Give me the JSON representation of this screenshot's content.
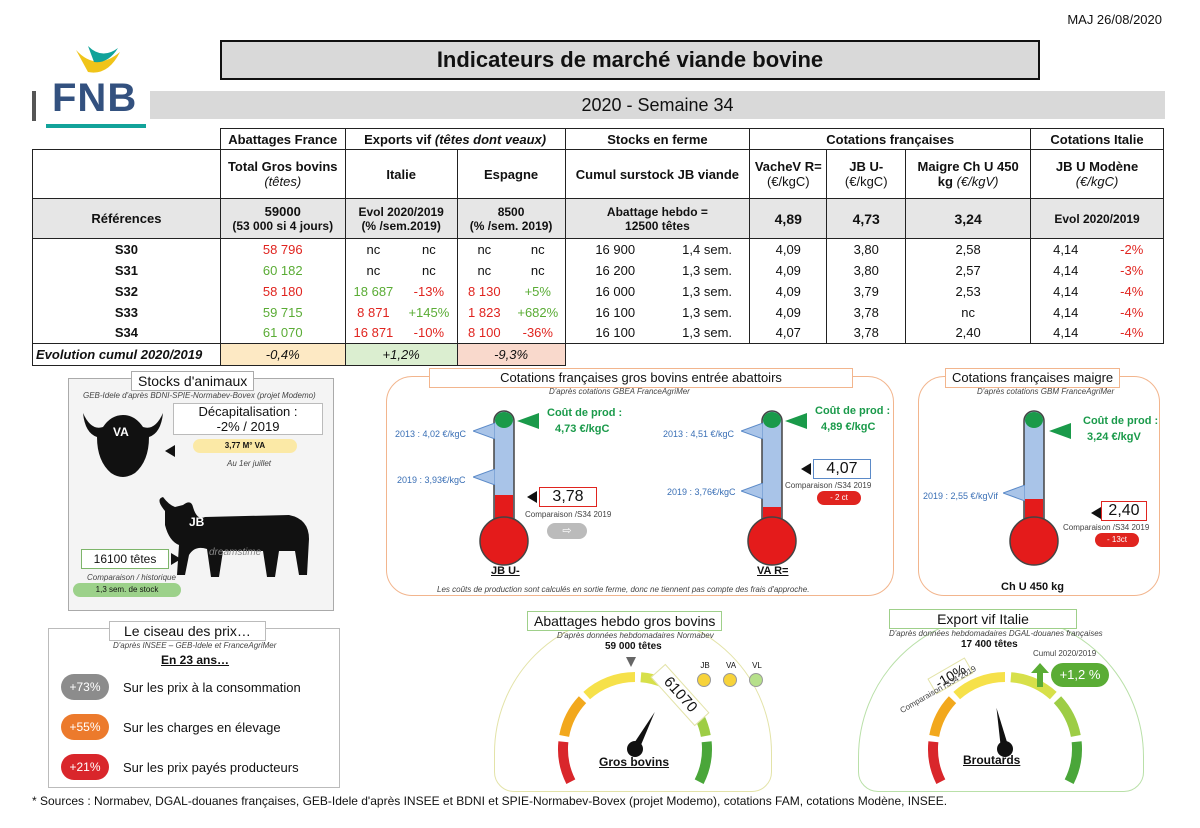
{
  "header": {
    "maj": "MAJ 26/08/2020",
    "logo_text": "FNB",
    "title": "Indicateurs de marché viande bovine",
    "week": "2020 - Semaine 34"
  },
  "table": {
    "groups": [
      "Abattages France",
      "Exports vif (têtes dont veaux)",
      "Stocks en ferme",
      "Cotations françaises",
      "Cotations Italie"
    ],
    "headers": {
      "abattages": "Total Gros bovins",
      "abattages_unit": "(têtes)",
      "italie": "Italie",
      "espagne": "Espagne",
      "stocks": "Cumul surstock JB viande",
      "vache": "VacheV R=",
      "vache_unit": "(€/kgC)",
      "jb": "JB U-",
      "jb_unit": "(€/kgC)",
      "maigre": "Maigre Ch U 450",
      "maigre_unit": "kg (€/kgV)",
      "italie_jb": "JB U Modène",
      "italie_jb_unit": "(€/kgC)"
    },
    "references": {
      "label": "Références",
      "abattages": "59000",
      "abattages_note": "(53 000 si 4 jours)",
      "italie": "Evol 2020/2019",
      "italie_note": "(% /sem.2019)",
      "espagne": "8500",
      "espagne_note": "(% /sem. 2019)",
      "stocks": "Abattage hebdo =",
      "stocks_note": "12500 têtes",
      "vache": "4,89",
      "jb": "4,73",
      "maigre": "3,24"
    },
    "rows": [
      {
        "week": "S30",
        "abattages": "58 796",
        "ab_color": "red",
        "it_val": "nc",
        "it_pct": "nc",
        "it_color": "",
        "es_val": "nc",
        "es_pct": "nc",
        "es_color": "",
        "stock": "16 900",
        "stock_sem": "1,4 sem.",
        "vache": "4,09",
        "jb": "3,80",
        "maigre": "2,58",
        "mod": "4,14",
        "mod_pct": "-2%"
      },
      {
        "week": "S31",
        "abattages": "60 182",
        "ab_color": "green",
        "it_val": "nc",
        "it_pct": "nc",
        "it_color": "",
        "es_val": "nc",
        "es_pct": "nc",
        "es_color": "",
        "stock": "16 200",
        "stock_sem": "1,3 sem.",
        "vache": "4,09",
        "jb": "3,80",
        "maigre": "2,57",
        "mod": "4,14",
        "mod_pct": "-3%"
      },
      {
        "week": "S32",
        "abattages": "58 180",
        "ab_color": "red",
        "it_val": "18 687",
        "it_pct": "-13%",
        "it_color": "green-red",
        "es_val": "8 130",
        "es_pct": "+5%",
        "es_color": "red-green",
        "stock": "16 000",
        "stock_sem": "1,3 sem.",
        "vache": "4,09",
        "jb": "3,79",
        "maigre": "2,53",
        "mod": "4,14",
        "mod_pct": "-4%"
      },
      {
        "week": "S33",
        "abattages": "59 715",
        "ab_color": "green",
        "it_val": "8 871",
        "it_pct": "+145%",
        "it_color": "red-green",
        "es_val": "1 823",
        "es_pct": "+682%",
        "es_color": "red-green",
        "stock": "16 100",
        "stock_sem": "1,3 sem.",
        "vache": "4,09",
        "jb": "3,78",
        "maigre": "nc",
        "mod": "4,14",
        "mod_pct": "-4%"
      },
      {
        "week": "S34",
        "abattages": "61 070",
        "ab_color": "green",
        "it_val": "16 871",
        "it_pct": "-10%",
        "it_color": "red-red",
        "es_val": "8 100",
        "es_pct": "-36%",
        "es_color": "red-red",
        "stock": "16 100",
        "stock_sem": "1,3 sem.",
        "vache": "4,07",
        "jb": "3,78",
        "maigre": "2,40",
        "mod": "4,14",
        "mod_pct": "-4%"
      }
    ],
    "evolution": {
      "label": "Evolution cumul 2020/2019",
      "abattages": "-0,4%",
      "exports_italie": "+1,2%",
      "exports_espagne": "-9,3%"
    }
  },
  "stocks_panel": {
    "title": "Stocks d'animaux",
    "source": "GEB-Idele d'après BDNI-SPIE-Normabev-Bovex (projet Modemo)",
    "va_label": "VA",
    "decap_title": "Décapitalisation :",
    "decap_value": "-2% / 2019",
    "va_count": "3,77 M° VA",
    "date_note": "Au 1er juillet",
    "jb_label": "JB",
    "watermark": "dreamstime",
    "jb_count": "16100  têtes",
    "jb_note": "Comparaison / historique",
    "jb_stock": "1,3 sem. de stock"
  },
  "ciseau_panel": {
    "title": "Le ciseau des prix…",
    "source": "D'après INSEE – GEB-Idele et FranceAgriMer",
    "period": "En 23 ans…",
    "items": [
      {
        "pct": "+73%",
        "text": "Sur les prix à la consommation",
        "color": "#8c8c8c"
      },
      {
        "pct": "+55%",
        "text": "Sur les charges en élevage",
        "color": "#ec7a2c"
      },
      {
        "pct": "+21%",
        "text": "Sur les prix payés producteurs",
        "color": "#d9262b"
      }
    ]
  },
  "cotations_panel": {
    "title": "Cotations françaises gros bovins entrée abattoirs",
    "source": "D'après cotations GBEA FranceAgriMer",
    "footnote": "Les coûts de production sont calculés en sortie ferme, donc ne tiennent pas compte des frais d'approche.",
    "jb": {
      "name": "JB U-",
      "ref_2013": "2013 : 4,02 €/kgC",
      "ref_2019": "2019 : 3,93€/kgC",
      "cout_label": "Coût de prod :",
      "cout_value": "4,73 €/kgC",
      "value": "3,78",
      "comparison": "Comparaison /S34 2019"
    },
    "va": {
      "name": "VA R=",
      "ref_2013": "2013 : 4,51 €/kgC",
      "ref_2019": "2019 : 3,76€/kgC",
      "cout_label": "Coût de prod :",
      "cout_value": "4,89 €/kgC",
      "value": "4,07",
      "comparison": "Comparaison /S34 2019",
      "delta": "- 2 ct"
    }
  },
  "maigre_panel": {
    "title": "Cotations françaises maigre",
    "source": "D'après cotations GBM FranceAgriMer",
    "name": "Ch U 450 kg",
    "ref_2019": "2019 : 2,55 €/kgVif",
    "cout_label": "Coût de prod :",
    "cout_value": "3,24 €/kgV",
    "value": "2,40",
    "comparison": "Comparaison /S34 2019",
    "delta": "- 13ct"
  },
  "abattages_panel": {
    "title": "Abattages hebdo gros bovins",
    "source": "D'après données hebdomadaires Normabev",
    "reference": "59 000 têtes",
    "value": "61070",
    "gauge_fraction": 0.62,
    "legend": [
      "JB",
      "VA",
      "VL"
    ],
    "label": "Gros bovins"
  },
  "export_panel": {
    "title": "Export vif Italie",
    "source": "D'après données hebdomadaires DGAL-douanes françaises",
    "reference": "17 400 têtes",
    "delta": "-10%",
    "comparison": "Comparaison /S34 2019",
    "cumul_label": "Cumul 2020/2019",
    "cumul_value": "+1,2 %",
    "gauge_fraction": 0.45,
    "label": "Broutards"
  },
  "footer": {
    "sources": "* Sources : Normabev, DGAL-douanes françaises, GEB-Idele d'après INSEE et BDNI et SPIE-Normabev-Bovex (projet Modemo), cotations FAM, cotations Modène, INSEE."
  },
  "colors": {
    "panel_border": "#c9b45a",
    "red": "#e0241f",
    "green": "#5aac35",
    "thermo_blue": "#a9c4e8",
    "thermo_red": "#e41b1b",
    "thermo_green": "#1a9a4a"
  }
}
